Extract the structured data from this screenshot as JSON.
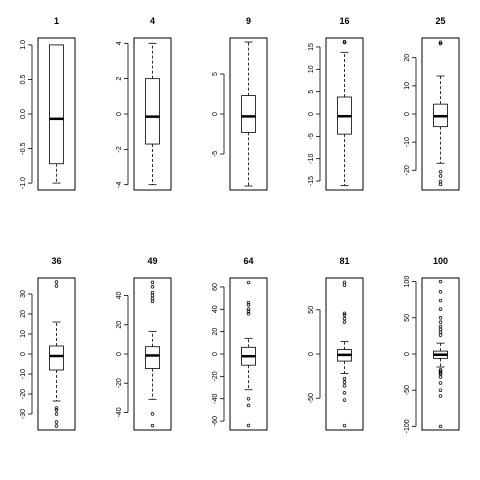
{
  "chart_data": [
    {
      "type": "box",
      "title": "1",
      "ylim": [
        -1.1,
        1.1
      ],
      "yticks": [
        -1.0,
        -0.5,
        0.0,
        0.5,
        1.0
      ],
      "ytick_labels": [
        "-1.0",
        "-0.5",
        "0.0",
        "0.5",
        "1.0"
      ],
      "box": {
        "whisker_low": -1.0,
        "q1": -0.72,
        "median": -0.07,
        "q3": 1.0,
        "whisker_high": 1.0
      },
      "outliers": []
    },
    {
      "type": "box",
      "title": "4",
      "ylim": [
        -4.3,
        4.3
      ],
      "yticks": [
        -4,
        -2,
        0,
        2,
        4
      ],
      "ytick_labels": [
        "-4",
        "-2",
        "0",
        "2",
        "4"
      ],
      "box": {
        "whisker_low": -4.0,
        "q1": -1.7,
        "median": -0.15,
        "q3": 2.0,
        "whisker_high": 4.0
      },
      "outliers": []
    },
    {
      "type": "box",
      "title": "9",
      "ylim": [
        -9.5,
        9.5
      ],
      "yticks": [
        -5,
        0,
        5
      ],
      "ytick_labels": [
        "-5",
        "0",
        "5"
      ],
      "box": {
        "whisker_low": -9.0,
        "q1": -2.3,
        "median": -0.3,
        "q3": 2.3,
        "whisker_high": 9.0
      },
      "outliers": []
    },
    {
      "type": "box",
      "title": "16",
      "ylim": [
        -17,
        17
      ],
      "yticks": [
        -15,
        -10,
        -5,
        0,
        5,
        10,
        15
      ],
      "ytick_labels": [
        "-15",
        "-10",
        "-5",
        "0",
        "5",
        "10",
        "15"
      ],
      "box": {
        "whisker_low": -16.0,
        "q1": -4.5,
        "median": -0.5,
        "q3": 3.8,
        "whisker_high": 13.8
      },
      "outliers": [
        16.0,
        16.2
      ]
    },
    {
      "type": "box",
      "title": "25",
      "ylim": [
        -27,
        27
      ],
      "yticks": [
        -20,
        -10,
        0,
        10,
        20
      ],
      "ytick_labels": [
        "-20",
        "-10",
        "0",
        "10",
        "20"
      ],
      "box": {
        "whisker_low": -17.5,
        "q1": -4.5,
        "median": -0.8,
        "q3": 3.5,
        "whisker_high": 13.5
      },
      "outliers": [
        -25.0,
        -24.0,
        -22.0,
        -20.5,
        25.0,
        25.5
      ]
    },
    {
      "type": "box",
      "title": "36",
      "ylim": [
        -38,
        38
      ],
      "yticks": [
        -30,
        -20,
        -10,
        0,
        10,
        20,
        30
      ],
      "ytick_labels": [
        "-30",
        "-20",
        "-10",
        "0",
        "10",
        "20",
        "30"
      ],
      "box": {
        "whisker_low": -23.5,
        "q1": -8.0,
        "median": -1.0,
        "q3": 4.0,
        "whisker_high": 16.0
      },
      "outliers": [
        -36.0,
        -34.0,
        -30.0,
        -28.0,
        -27.0,
        34.0,
        36.0
      ]
    },
    {
      "type": "box",
      "title": "49",
      "ylim": [
        -52,
        52
      ],
      "yticks": [
        -40,
        -20,
        0,
        20,
        40
      ],
      "ytick_labels": [
        "-40",
        "-20",
        "0",
        "20",
        "40"
      ],
      "box": {
        "whisker_low": -31.0,
        "q1": -10.0,
        "median": -1.0,
        "q3": 5.0,
        "whisker_high": 15.5
      },
      "outliers": [
        -49.0,
        -41.0,
        36.0,
        38.0,
        40.0,
        42.0,
        46.0,
        49.0
      ]
    },
    {
      "type": "box",
      "title": "64",
      "ylim": [
        -68,
        68
      ],
      "yticks": [
        -60,
        -40,
        -20,
        0,
        20,
        40,
        60
      ],
      "ytick_labels": [
        "-60",
        "-40",
        "-20",
        "0",
        "20",
        "40",
        "60"
      ],
      "box": {
        "whisker_low": -32.0,
        "q1": -10.0,
        "median": -2.0,
        "q3": 6.0,
        "whisker_high": 14.0
      },
      "outliers": [
        -64.0,
        -46.0,
        -40.0,
        36.0,
        38.0,
        40.0,
        44.0,
        46.0,
        64.0
      ]
    },
    {
      "type": "box",
      "title": "81",
      "ylim": [
        -86,
        86
      ],
      "yticks": [
        -50,
        0,
        50
      ],
      "ytick_labels": [
        "-50",
        "0",
        "50"
      ],
      "box": {
        "whisker_low": -22.0,
        "q1": -8.0,
        "median": -1.0,
        "q3": 5.0,
        "whisker_high": 14.0
      },
      "outliers": [
        -81.0,
        -52.0,
        -44.0,
        -36.0,
        -32.0,
        -28.0,
        36.0,
        40.0,
        44.0,
        46.0,
        78.0,
        81.0
      ]
    },
    {
      "type": "box",
      "title": "100",
      "ylim": [
        -105,
        105
      ],
      "yticks": [
        -100,
        -50,
        0,
        50,
        100
      ],
      "ytick_labels": [
        "-100",
        "-50",
        "0",
        "50",
        "100"
      ],
      "box": {
        "whisker_low": -18.0,
        "q1": -6.0,
        "median": -1.0,
        "q3": 4.0,
        "whisker_high": 15.0
      },
      "outliers": [
        -100.0,
        -58.0,
        -50.0,
        -40.0,
        -32.0,
        -28.0,
        -26.0,
        -24.0,
        -22.0,
        26.0,
        30.0,
        34.0,
        38.0,
        44.0,
        50.0,
        62.0,
        74.0,
        86.0,
        100.0
      ]
    }
  ]
}
